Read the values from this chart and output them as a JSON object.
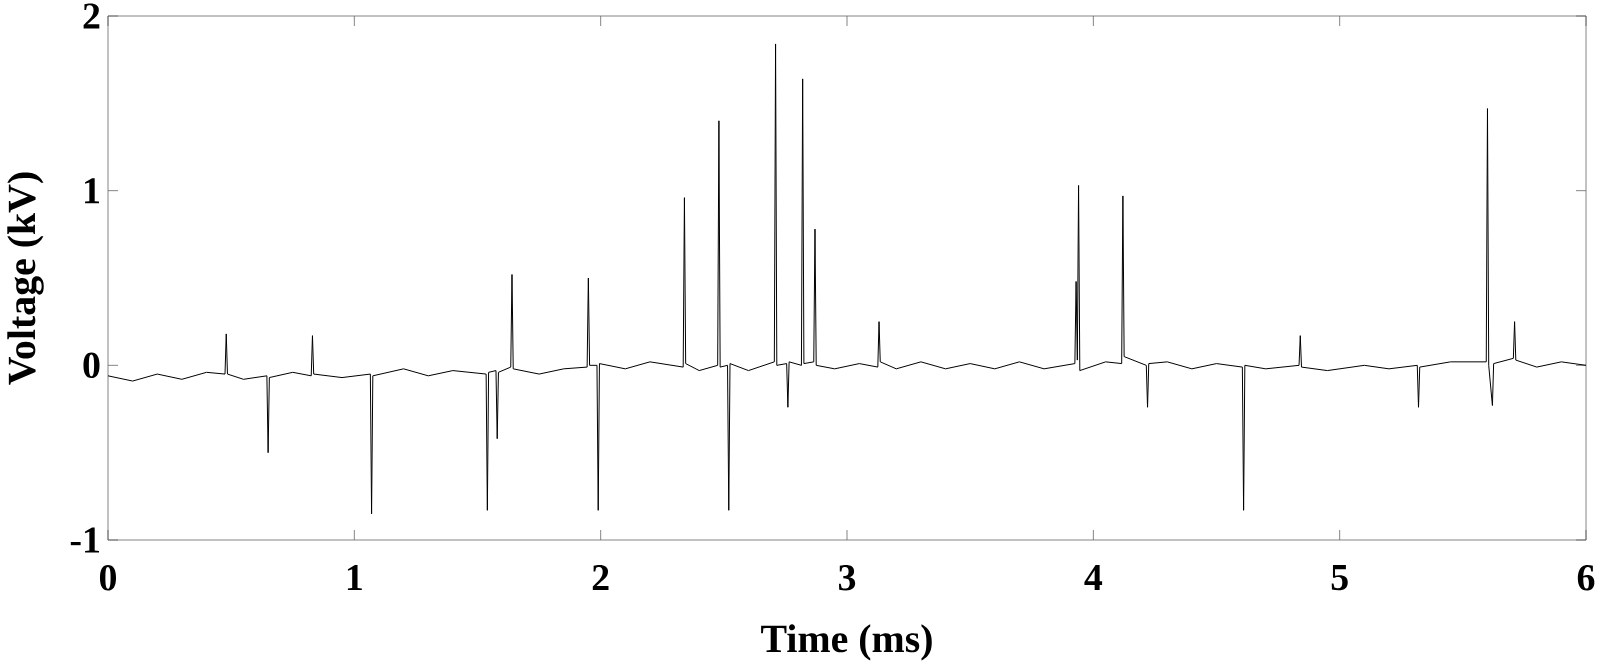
{
  "chart_data": {
    "type": "line",
    "xlabel": "Time (ms)",
    "ylabel": "Voltage (kV)",
    "xlim": [
      0,
      6
    ],
    "ylim": [
      -1,
      2
    ],
    "xticks": [
      0,
      1,
      2,
      3,
      4,
      5,
      6
    ],
    "yticks": [
      -1,
      0,
      1,
      2
    ],
    "grid": false,
    "marker": "none",
    "line_style": "solid",
    "series": [
      {
        "color": "#000000",
        "x": [
          0,
          0.1,
          0.2,
          0.3,
          0.4,
          0.475,
          0.48,
          0.485,
          0.55,
          0.645,
          0.65,
          0.655,
          0.75,
          0.825,
          0.83,
          0.835,
          0.95,
          1.065,
          1.07,
          1.075,
          1.2,
          1.3,
          1.4,
          1.535,
          1.54,
          1.545,
          1.575,
          1.58,
          1.585,
          1.635,
          1.64,
          1.645,
          1.75,
          1.85,
          1.945,
          1.95,
          1.955,
          1.985,
          1.99,
          1.995,
          2.1,
          2.2,
          2.335,
          2.34,
          2.345,
          2.4,
          2.475,
          2.48,
          2.485,
          2.515,
          2.52,
          2.525,
          2.6,
          2.705,
          2.71,
          2.715,
          2.755,
          2.76,
          2.765,
          2.815,
          2.82,
          2.825,
          2.865,
          2.87,
          2.875,
          2.95,
          3.05,
          3.125,
          3.13,
          3.135,
          3.2,
          3.3,
          3.4,
          3.5,
          3.6,
          3.7,
          3.8,
          3.925,
          3.93,
          3.935,
          3.94,
          3.945,
          4.05,
          4.115,
          4.12,
          4.125,
          4.215,
          4.22,
          4.225,
          4.3,
          4.4,
          4.5,
          4.605,
          4.61,
          4.615,
          4.7,
          4.835,
          4.84,
          4.845,
          4.95,
          5.1,
          5.2,
          5.315,
          5.32,
          5.325,
          5.45,
          5.595,
          5.6,
          5.605,
          5.62,
          5.625,
          5.705,
          5.71,
          5.715,
          5.8,
          5.9,
          6.0
        ],
        "values": [
          -0.06,
          -0.09,
          -0.05,
          -0.08,
          -0.04,
          -0.05,
          0.18,
          -0.05,
          -0.08,
          -0.06,
          -0.5,
          -0.07,
          -0.04,
          -0.06,
          0.17,
          -0.05,
          -0.07,
          -0.05,
          -0.85,
          -0.06,
          -0.02,
          -0.06,
          -0.03,
          -0.05,
          -0.83,
          -0.04,
          -0.03,
          -0.42,
          -0.04,
          -0.01,
          0.52,
          -0.02,
          -0.05,
          -0.02,
          -0.01,
          0.5,
          0.0,
          0.0,
          -0.83,
          0.01,
          -0.02,
          0.02,
          -0.01,
          0.96,
          0.01,
          -0.03,
          0.0,
          1.4,
          -0.01,
          0.0,
          -0.83,
          0.01,
          -0.03,
          0.02,
          1.84,
          0.0,
          0.01,
          -0.24,
          0.02,
          0.0,
          1.64,
          0.01,
          0.02,
          0.78,
          0.0,
          -0.02,
          0.01,
          -0.01,
          0.25,
          0.02,
          -0.02,
          0.02,
          -0.02,
          0.01,
          -0.02,
          0.02,
          -0.02,
          0.01,
          0.48,
          0.03,
          1.03,
          -0.03,
          0.02,
          0.01,
          0.97,
          0.05,
          0.0,
          -0.24,
          0.01,
          0.02,
          -0.02,
          0.01,
          -0.01,
          -0.83,
          0.0,
          -0.02,
          0.0,
          0.17,
          -0.01,
          -0.03,
          0.0,
          -0.02,
          0.0,
          -0.24,
          -0.01,
          0.02,
          0.02,
          1.47,
          0.0,
          -0.23,
          0.01,
          0.04,
          0.25,
          0.03,
          -0.01,
          0.02,
          0.0
        ]
      }
    ]
  }
}
